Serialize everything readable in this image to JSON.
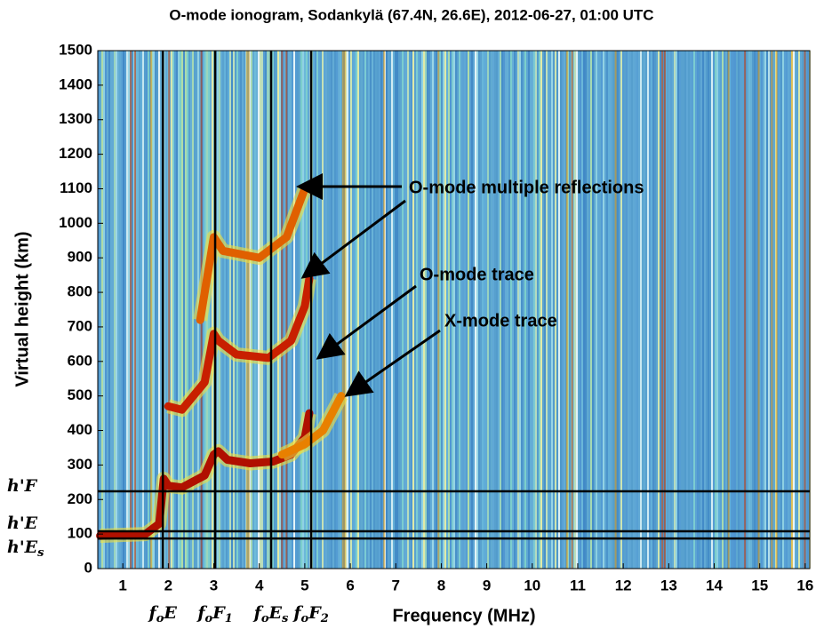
{
  "chart_data": {
    "type": "ionogram",
    "title": "O-mode ionogram, Sodankylä (67.4N, 26.6E), 2012-06-27, 01:00 UTC",
    "x_label": "Frequency (MHz)",
    "y_label": "Virtual height (km)",
    "xlim": [
      0.45,
      16.1
    ],
    "ylim": [
      0,
      1500
    ],
    "xticks": [
      1,
      2,
      3,
      4,
      5,
      6,
      7,
      8,
      9,
      10,
      11,
      12,
      13,
      14,
      15,
      16
    ],
    "yticks": [
      0,
      100,
      200,
      300,
      400,
      500,
      600,
      700,
      800,
      900,
      1000,
      1100,
      1200,
      1300,
      1400,
      1500
    ],
    "vlines": [
      {
        "value": 1.88,
        "label": [
          {
            "text": "f"
          },
          {
            "text": "o",
            "sub": true
          },
          {
            "text": "E"
          }
        ]
      },
      {
        "value": 3.03,
        "label": [
          {
            "text": "f"
          },
          {
            "text": "o",
            "sub": true
          },
          {
            "text": "F"
          },
          {
            "text": "1",
            "sub": true
          }
        ]
      },
      {
        "value": 4.26,
        "label": [
          {
            "text": "f"
          },
          {
            "text": "o",
            "sub": true
          },
          {
            "text": "E"
          },
          {
            "text": "s",
            "sub": true
          }
        ]
      },
      {
        "value": 5.14,
        "label": [
          {
            "text": "f"
          },
          {
            "text": "o",
            "sub": true
          },
          {
            "text": "F"
          },
          {
            "text": "2",
            "sub": true
          }
        ]
      }
    ],
    "hlines": [
      {
        "value": 224,
        "label": [
          {
            "text": "h'F"
          }
        ]
      },
      {
        "value": 108,
        "label": [
          {
            "text": "h'E"
          }
        ]
      },
      {
        "value": 87,
        "label": [
          {
            "text": "h'E"
          },
          {
            "text": "s",
            "sub": true
          }
        ]
      }
    ],
    "traces": [
      {
        "color": "#b01000",
        "x": [
          0.5,
          1.5,
          1.8,
          1.9,
          2.0,
          2.3,
          2.8,
          3.0,
          3.1,
          3.3,
          3.8,
          4.3,
          4.7,
          5.0,
          5.1
        ],
        "values": [
          95,
          100,
          130,
          260,
          240,
          235,
          270,
          330,
          340,
          315,
          305,
          310,
          330,
          380,
          450
        ]
      },
      {
        "color": "#c82000",
        "x": [
          2.0,
          2.3,
          2.8,
          3.0,
          3.1,
          3.5,
          4.2,
          4.7,
          5.0,
          5.1
        ],
        "values": [
          470,
          460,
          540,
          680,
          660,
          620,
          610,
          660,
          760,
          840
        ]
      },
      {
        "color": "#e06000",
        "x": [
          2.7,
          3.0,
          3.2,
          4.0,
          4.6,
          5.0
        ],
        "values": [
          720,
          960,
          920,
          900,
          960,
          1100
        ]
      },
      {
        "color": "#e88000",
        "x": [
          4.5,
          5.0,
          5.4,
          5.8
        ],
        "values": [
          330,
          360,
          400,
          500
        ]
      }
    ],
    "annotations": [
      "O-mode multiple reflections",
      "O-mode trace",
      "X-mode trace"
    ]
  }
}
